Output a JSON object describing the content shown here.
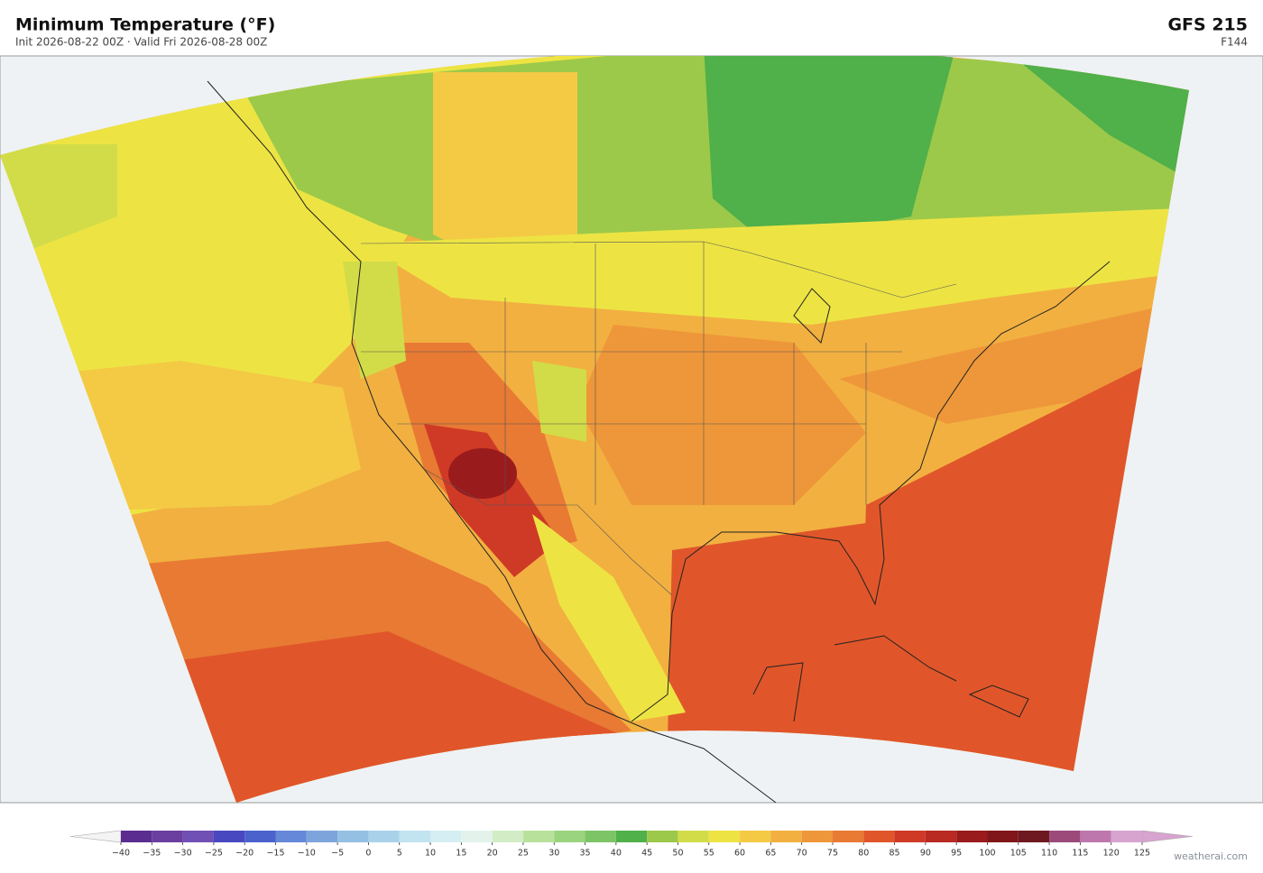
{
  "header": {
    "title": "Minimum Temperature  (°F)",
    "subtitle": "Init 2026-08-22 00Z  ·  Valid Fri 2026-08-28 00Z",
    "model": "GFS  215",
    "forecast_hour": "F144"
  },
  "colorbar": {
    "lim": [
      -40,
      125
    ],
    "ticks": [
      {
        "value": -40,
        "label": "−40"
      },
      {
        "value": -35,
        "label": "−35"
      },
      {
        "value": -30,
        "label": "−30"
      },
      {
        "value": -25,
        "label": "−25"
      },
      {
        "value": -20,
        "label": "−20"
      },
      {
        "value": -15,
        "label": "−15"
      },
      {
        "value": -10,
        "label": "−10"
      },
      {
        "value": -5,
        "label": "−5"
      },
      0,
      5,
      10,
      15,
      20,
      25,
      30,
      35,
      40,
      45,
      50,
      55,
      60,
      65,
      70,
      75,
      80,
      85,
      90,
      95,
      100,
      105,
      110,
      115,
      120,
      125
    ],
    "colors": [
      "#5b2d91",
      "#6a3fa0",
      "#7150b5",
      "#4848c0",
      "#4b62cc",
      "#6688d8",
      "#7ea4dc",
      "#94c0e4",
      "#a9d2ea",
      "#c2e3f0",
      "#d5eef3",
      "#e3f3ec",
      "#d2edc6",
      "#b8e29c",
      "#9bd47e",
      "#7cc466",
      "#50b04a",
      "#9cc94a",
      "#d2dc48",
      "#ede443",
      "#f4ca45",
      "#f2b040",
      "#ee973a",
      "#e87a33",
      "#e0562a",
      "#cf3a26",
      "#b82a22",
      "#9a1b1c",
      "#801619",
      "#6e1820",
      "#9c4a7a",
      "#be77ad",
      "#d7a3cf"
    ],
    "under_color": "#f4f4f4",
    "over_color": "#d7a3cf"
  },
  "footer": {
    "credit": "weatherai.com"
  }
}
